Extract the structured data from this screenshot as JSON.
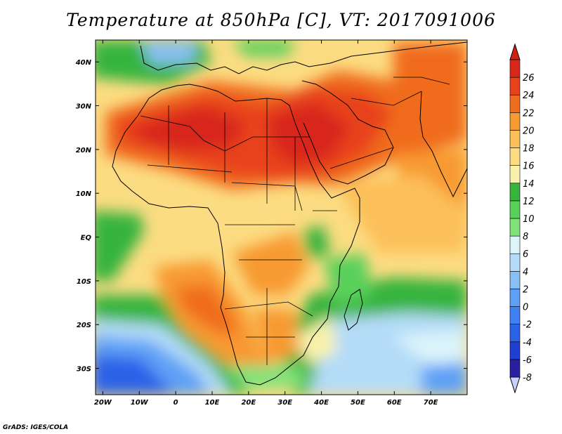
{
  "title": "Temperature at 850hPa [C], VT: 2017091006",
  "credit": "GrADS: IGES/COLA",
  "map": {
    "variable": "Temperature at 850hPa",
    "units": "C",
    "valid_time": "2017091006",
    "extent": {
      "lon": [
        -22,
        80
      ],
      "lat": [
        -36,
        45
      ]
    },
    "lon_ticks": [
      {
        "value": -20,
        "label": "20W"
      },
      {
        "value": -10,
        "label": "10W"
      },
      {
        "value": 0,
        "label": "0"
      },
      {
        "value": 10,
        "label": "10E"
      },
      {
        "value": 20,
        "label": "20E"
      },
      {
        "value": 30,
        "label": "30E"
      },
      {
        "value": 40,
        "label": "40E"
      },
      {
        "value": 50,
        "label": "50E"
      },
      {
        "value": 60,
        "label": "60E"
      },
      {
        "value": 70,
        "label": "70E"
      }
    ],
    "lat_ticks": [
      {
        "value": 40,
        "label": "40N"
      },
      {
        "value": 30,
        "label": "30N"
      },
      {
        "value": 20,
        "label": "20N"
      },
      {
        "value": 10,
        "label": "10N"
      },
      {
        "value": 0,
        "label": "EQ"
      },
      {
        "value": -10,
        "label": "10S"
      },
      {
        "value": -20,
        "label": "20S"
      },
      {
        "value": -30,
        "label": "30S"
      }
    ]
  },
  "colorbar": {
    "orientation": "vertical",
    "placement": "right",
    "levels": [
      "-8",
      "-6",
      "-4",
      "-2",
      "0",
      "2",
      "4",
      "6",
      "8",
      "10",
      "12",
      "14",
      "16",
      "18",
      "20",
      "22",
      "24",
      "26"
    ],
    "colors": [
      "#2a1fa0",
      "#1e3fd2",
      "#2c62e8",
      "#3f80f4",
      "#5ea0f6",
      "#88c0f6",
      "#b4dcf8",
      "#dcf4fa",
      "#82e27a",
      "#58d05a",
      "#36b43c",
      "#faf2aa",
      "#fcdc82",
      "#fcc05a",
      "#f89a32",
      "#f06c1e",
      "#e8421a",
      "#d8281c"
    ],
    "under_color": "#c8d0ff",
    "over_color": "#d22010"
  }
}
